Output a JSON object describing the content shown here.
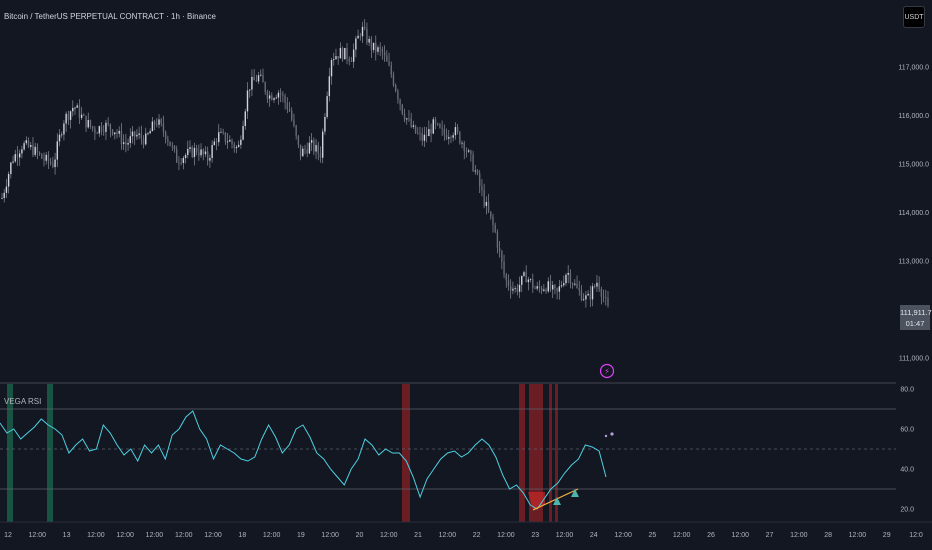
{
  "title": "Bitcoin / TetherUS PERPETUAL CONTRACT · 1h · Binance",
  "currency_button": "USDT",
  "indicator_title": "VEGA RSI",
  "price_axis": {
    "ticks": [
      {
        "label": "117,000.0",
        "value": 117000
      },
      {
        "label": "116,000.0",
        "value": 116000
      },
      {
        "label": "115,000.0",
        "value": 115000
      },
      {
        "label": "114,000.0",
        "value": 114000
      },
      {
        "label": "113,000.0",
        "value": 113000
      },
      {
        "label": "111,000.0",
        "value": 111000
      }
    ]
  },
  "last_price": {
    "price": "111,911.7",
    "countdown": "01:47",
    "value": 111911.7
  },
  "rsi_axis": {
    "ticks": [
      {
        "label": "80.0",
        "value": 80
      },
      {
        "label": "60.0",
        "value": 60
      },
      {
        "label": "40.0",
        "value": 40
      },
      {
        "label": "20.0",
        "value": 20
      }
    ],
    "upper_band": 70,
    "mid": 50,
    "lower_band": 30
  },
  "time_axis": [
    "12",
    "12:00",
    "13",
    "12:00",
    "12:00",
    "12:00",
    "12:00",
    "12:00",
    "18",
    "12:00",
    "19",
    "12:00",
    "20",
    "12:00",
    "21",
    "12:00",
    "22",
    "12:00",
    "23",
    "12:00",
    "24",
    "12:00",
    "25",
    "12:00",
    "26",
    "12:00",
    "27",
    "12:00",
    "28",
    "12:00",
    "29",
    "12:0"
  ],
  "chart_data": {
    "type": "candlestick_with_indicator",
    "price_series": [
      114300,
      115100,
      115400,
      115300,
      115100,
      115000,
      115900,
      116200,
      115900,
      115700,
      115800,
      115700,
      115400,
      115600,
      115500,
      115900,
      115600,
      115100,
      115200,
      115300,
      115100,
      115600,
      115500,
      115300,
      116600,
      116800,
      116400,
      116500,
      116100,
      115200,
      115400,
      115200,
      117200,
      117300,
      117200,
      117800,
      117400,
      117300,
      116800,
      116100,
      115700,
      115500,
      115800,
      115600,
      115700,
      115400,
      114900,
      114200,
      113600,
      112600,
      112400,
      112700,
      112400,
      112500,
      112300,
      112800,
      112400,
      112200,
      112600,
      112000
    ],
    "rsi_series": [
      63,
      58,
      60,
      55,
      58,
      61,
      65,
      62,
      60,
      57,
      48,
      52,
      55,
      49,
      50,
      62,
      58,
      52,
      47,
      50,
      44,
      52,
      48,
      52,
      45,
      57,
      60,
      66,
      69,
      60,
      55,
      45,
      52,
      50,
      48,
      45,
      44,
      46,
      55,
      62,
      56,
      48,
      52,
      60,
      62,
      56,
      48,
      45,
      40,
      36,
      32,
      40,
      45,
      55,
      52,
      47,
      50,
      48,
      48,
      44,
      36,
      26,
      35,
      40,
      45,
      48,
      49,
      46,
      48,
      52,
      55,
      52,
      46,
      37,
      30,
      32,
      28,
      22,
      20,
      25,
      30,
      33,
      38,
      42,
      45,
      52,
      51,
      49,
      36
    ],
    "rsi_highlights": [
      {
        "region": "green",
        "approx_x_label": "12"
      },
      {
        "region": "green",
        "approx_x_label": "13"
      },
      {
        "region": "red",
        "approx_x_label": "20"
      },
      {
        "region": "red",
        "approx_x_label": "22"
      }
    ]
  }
}
